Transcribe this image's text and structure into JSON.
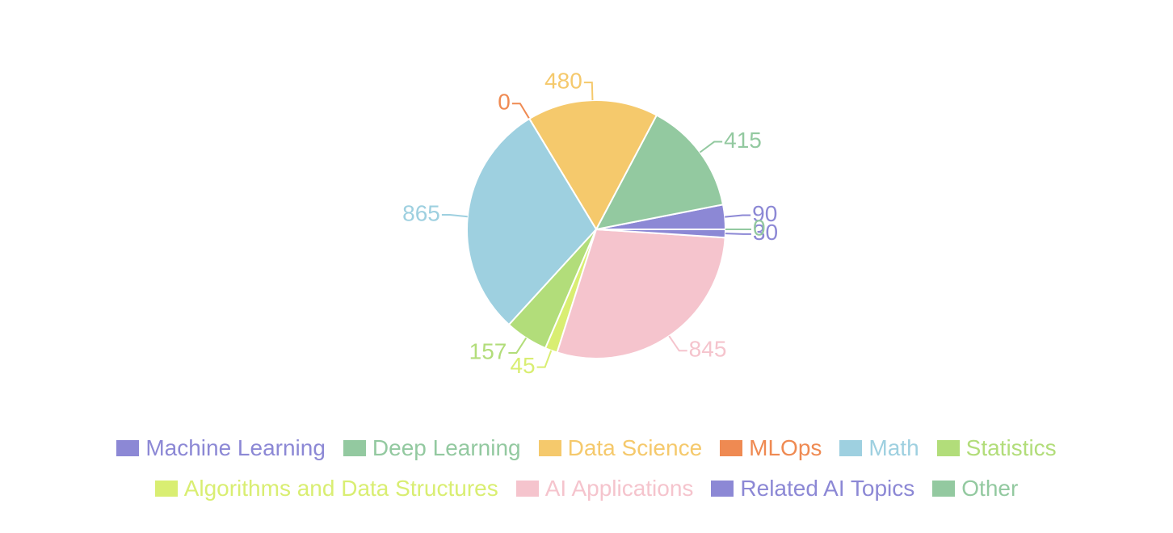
{
  "chart_data": {
    "type": "pie",
    "categories": [
      "Machine Learning",
      "Deep Learning",
      "Data Science",
      "MLOps",
      "Math",
      "Statistics",
      "Algorithms and Data Structures",
      "AI Applications",
      "Related AI Topics",
      "Other"
    ],
    "values": [
      90,
      415,
      480,
      0,
      865,
      157,
      45,
      845,
      30,
      0
    ],
    "colors": [
      "#8c88d5",
      "#93c9a0",
      "#f5c96c",
      "#ef8a52",
      "#9ed0e0",
      "#b2dd7a",
      "#d9ee72",
      "#f5c4cd",
      "#8c88d5",
      "#93c9a0"
    ],
    "legend": "bottom"
  }
}
